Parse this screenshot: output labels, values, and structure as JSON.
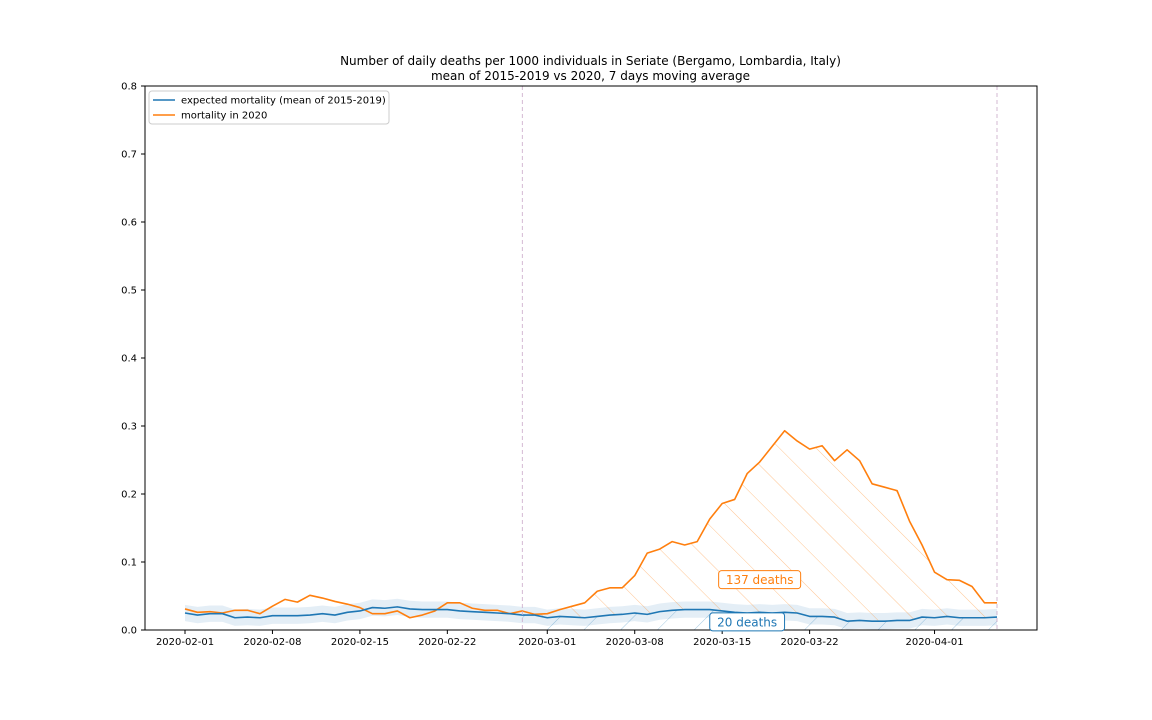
{
  "chart_data": {
    "type": "line",
    "title": "Number of daily deaths per 1000 individuals in Seriate (Bergamo, Lombardia, Italy)",
    "subtitle": "mean of 2015-2019 vs 2020, 7 days moving average",
    "xlabel": "",
    "ylabel": "",
    "x_start": "2020-02-01",
    "x_end": "2020-04-06",
    "ylim": [
      0,
      0.8
    ],
    "yticks": [
      0.0,
      0.1,
      0.2,
      0.3,
      0.4,
      0.5,
      0.6,
      0.7,
      0.8
    ],
    "xticks": [
      "2020-02-01",
      "2020-02-08",
      "2020-02-15",
      "2020-02-22",
      "2020-03-01",
      "2020-03-08",
      "2020-03-15",
      "2020-03-22",
      "2020-04-01"
    ],
    "vlines": [
      "2020-02-28",
      "2020-04-06"
    ],
    "grid": false,
    "legend_placement": "top-left",
    "series": [
      {
        "name": "expected mortality (mean of 2015-2019)",
        "color": "#1f77b4",
        "y": [
          0.025,
          0.022,
          0.024,
          0.024,
          0.018,
          0.019,
          0.018,
          0.021,
          0.021,
          0.021,
          0.022,
          0.024,
          0.022,
          0.026,
          0.028,
          0.033,
          0.032,
          0.034,
          0.031,
          0.03,
          0.03,
          0.03,
          0.028,
          0.027,
          0.026,
          0.025,
          0.024,
          0.022,
          0.022,
          0.018,
          0.02,
          0.019,
          0.018,
          0.02,
          0.022,
          0.023,
          0.025,
          0.023,
          0.027,
          0.029,
          0.03,
          0.03,
          0.03,
          0.028,
          0.026,
          0.025,
          0.026,
          0.025,
          0.026,
          0.025,
          0.02,
          0.02,
          0.019,
          0.013,
          0.014,
          0.013,
          0.013,
          0.014,
          0.014,
          0.019,
          0.018,
          0.02,
          0.018,
          0.018,
          0.018,
          0.019
        ]
      },
      {
        "name": "mortality in 2020",
        "color": "#ff7f0e",
        "y": [
          0.031,
          0.026,
          0.027,
          0.025,
          0.029,
          0.029,
          0.024,
          0.035,
          0.045,
          0.041,
          0.051,
          0.047,
          0.042,
          0.038,
          0.033,
          0.024,
          0.024,
          0.028,
          0.018,
          0.022,
          0.028,
          0.04,
          0.04,
          0.032,
          0.029,
          0.029,
          0.024,
          0.028,
          0.023,
          0.024,
          0.03,
          0.035,
          0.04,
          0.057,
          0.062,
          0.062,
          0.08,
          0.113,
          0.119,
          0.13,
          0.125,
          0.13,
          0.163,
          0.186,
          0.192,
          0.23,
          0.247,
          0.27,
          0.293,
          0.278,
          0.266,
          0.271,
          0.249,
          0.265,
          0.249,
          0.215,
          0.21,
          0.205,
          0.16,
          0.125,
          0.085,
          0.074,
          0.073,
          0.064,
          0.04,
          0.04
        ]
      }
    ],
    "band": {
      "series": "expected mortality (mean of 2015-2019)",
      "halfwidth": 0.012
    },
    "annotations": [
      {
        "text": "137 deaths",
        "x": "2020-03-18",
        "y": 0.074,
        "color": "#ff7f0e"
      },
      {
        "text": "20 deaths",
        "x": "2020-03-17",
        "y": 0.012,
        "color": "#1f77b4"
      }
    ]
  }
}
